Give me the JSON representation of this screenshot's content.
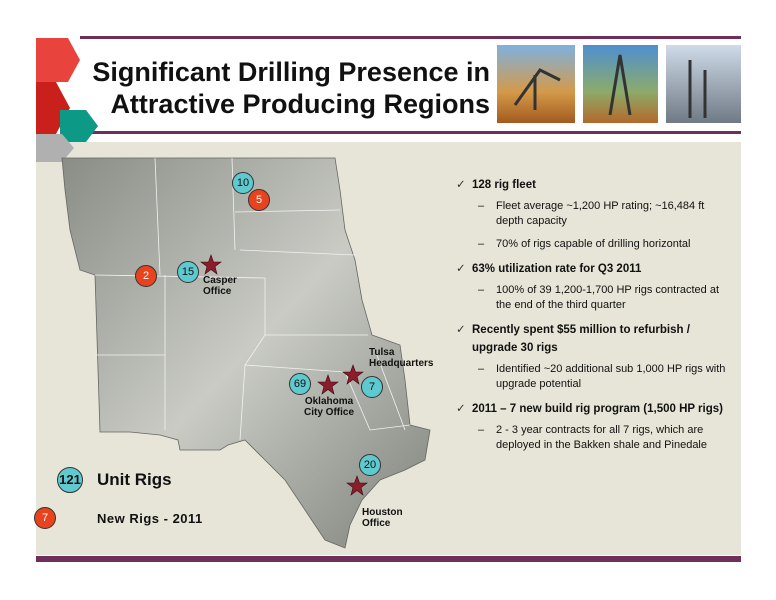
{
  "header": {
    "title_lines": [
      "Significant Drilling Presence in",
      "Attractive Producing Regions"
    ]
  },
  "map": {
    "markers": [
      {
        "count": 10,
        "kind": "unit"
      },
      {
        "count": 5,
        "kind": "new"
      },
      {
        "count": 15,
        "kind": "unit"
      },
      {
        "count": 2,
        "kind": "new"
      },
      {
        "count": 69,
        "kind": "unit"
      },
      {
        "count": 7,
        "kind": "unit"
      },
      {
        "count": 20,
        "kind": "unit"
      }
    ],
    "offices": [
      {
        "lines": [
          "Casper",
          "Office"
        ]
      },
      {
        "lines": [
          "Tulsa",
          "Headquarters"
        ]
      },
      {
        "lines": [
          "Oklahoma",
          "City Office"
        ]
      },
      {
        "lines": [
          "Houston",
          "Office"
        ]
      }
    ]
  },
  "legend": {
    "unit_rigs": {
      "count": 121,
      "label": "Unit Rigs"
    },
    "new_rigs": {
      "count": 7,
      "label": "New Rigs - 2011"
    }
  },
  "bullets": [
    {
      "text": "128 rig fleet",
      "subs": [
        "Fleet average ~1,200 HP rating; ~16,484 ft depth capacity",
        "70% of rigs capable of drilling horizontal"
      ]
    },
    {
      "text": "63%  utilization rate for Q3 2011",
      "subs": [
        "100% of 39 1,200-1,700 HP rigs contracted at the end of the third quarter"
      ]
    },
    {
      "text": "Recently spent $55 million to refurbish / upgrade 30 rigs",
      "subs": [
        "Identified ~20 additional sub 1,000 HP rigs with upgrade potential"
      ]
    },
    {
      "text": "2011 – 7 new build rig program (1,500 HP rigs)",
      "subs": [
        "2 - 3 year contracts for all 7 rigs, which are deployed in the Bakken shale and Pinedale"
      ]
    }
  ]
}
